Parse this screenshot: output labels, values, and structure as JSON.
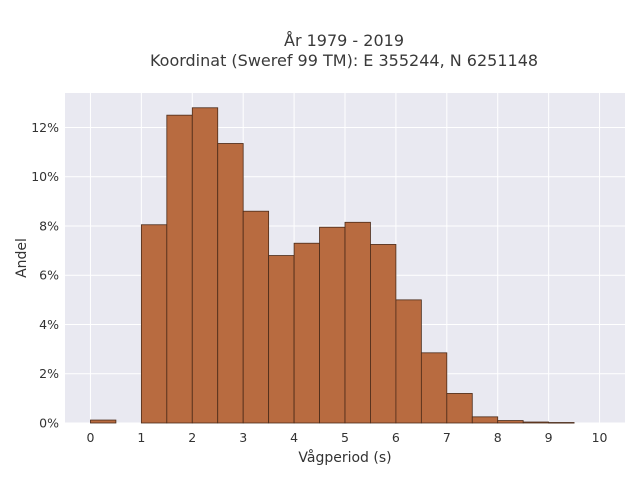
{
  "chart_data": {
    "type": "bar",
    "title_lines": [
      "År 1979 - 2019",
      "Koordinat (Sweref 99 TM): E 355244, N 6251148"
    ],
    "xlabel": "Vågperiod (s)",
    "ylabel": "Andel",
    "bin_width": 0.5,
    "bins": [
      {
        "start": 0.0,
        "value": 0.12
      },
      {
        "start": 0.5,
        "value": 0.0
      },
      {
        "start": 1.0,
        "value": 8.05
      },
      {
        "start": 1.5,
        "value": 12.5
      },
      {
        "start": 2.0,
        "value": 12.8
      },
      {
        "start": 2.5,
        "value": 11.35
      },
      {
        "start": 3.0,
        "value": 8.6
      },
      {
        "start": 3.5,
        "value": 6.8
      },
      {
        "start": 4.0,
        "value": 7.3
      },
      {
        "start": 4.5,
        "value": 7.95
      },
      {
        "start": 5.0,
        "value": 8.15
      },
      {
        "start": 5.5,
        "value": 7.25
      },
      {
        "start": 6.0,
        "value": 5.0
      },
      {
        "start": 6.5,
        "value": 2.85
      },
      {
        "start": 7.0,
        "value": 1.2
      },
      {
        "start": 7.5,
        "value": 0.25
      },
      {
        "start": 8.0,
        "value": 0.1
      },
      {
        "start": 8.5,
        "value": 0.04
      },
      {
        "start": 9.0,
        "value": 0.02
      }
    ],
    "xlim": [
      -0.5,
      10.5
    ],
    "ylim": [
      0,
      13.4
    ],
    "xticks": [
      0,
      1,
      2,
      3,
      4,
      5,
      6,
      7,
      8,
      9,
      10
    ],
    "yticks": [
      0,
      2,
      4,
      6,
      8,
      10,
      12
    ],
    "ytick_suffix": "%",
    "grid": true,
    "colors": {
      "bar_fill": "#b86b40",
      "bar_edge": "#4a2a18",
      "plot_bg": "#e9e9f1",
      "grid": "#ffffff"
    }
  }
}
